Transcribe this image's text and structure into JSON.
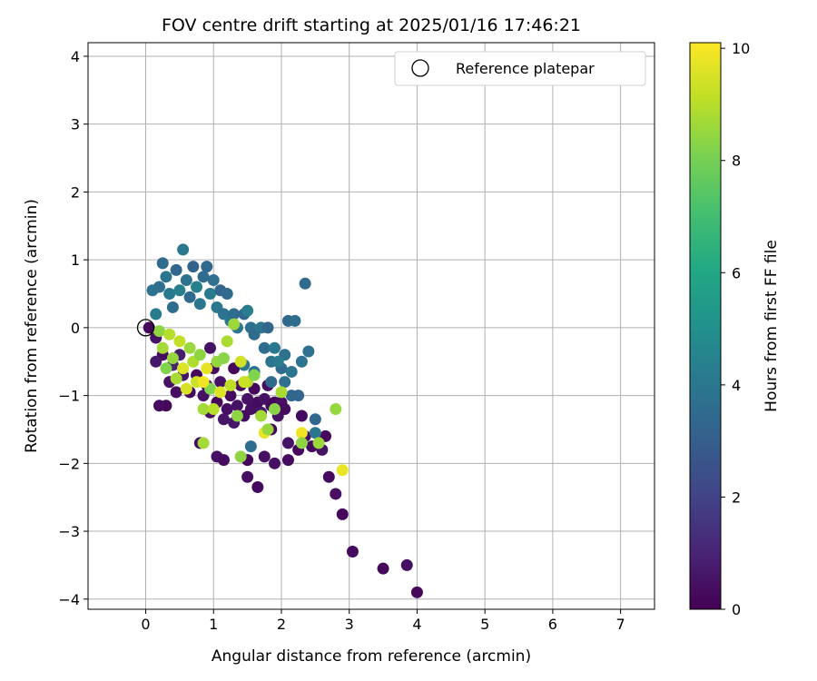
{
  "chart_data": {
    "type": "scatter",
    "title": "FOV centre drift starting at 2025/01/16 17:46:21",
    "xlabel": "Angular distance from reference (arcmin)",
    "ylabel": "Rotation from reference (arcmin)",
    "xlim": [
      -0.85,
      7.5
    ],
    "ylim": [
      -4.15,
      4.2
    ],
    "xticks": [
      0,
      1,
      2,
      3,
      4,
      5,
      6,
      7
    ],
    "yticks": [
      -4,
      -3,
      -2,
      -1,
      0,
      1,
      2,
      3,
      4
    ],
    "grid": true,
    "legend": {
      "placement": "top-right",
      "entries": [
        "Reference platepar"
      ]
    },
    "reference_point": {
      "x": 0,
      "y": 0,
      "label": "Reference platepar"
    },
    "colorbar": {
      "label": "Hours from first FF file",
      "range": [
        0,
        10.1
      ],
      "ticks": [
        0,
        2,
        4,
        6,
        8,
        10
      ],
      "colormap": "viridis"
    },
    "points": [
      [
        0.05,
        0.0,
        0.2
      ],
      [
        0.15,
        -0.15,
        0.5
      ],
      [
        0.25,
        -0.4,
        0.3
      ],
      [
        0.3,
        -1.15,
        0.2
      ],
      [
        0.2,
        -1.15,
        0.3
      ],
      [
        0.35,
        -0.8,
        0.5
      ],
      [
        0.45,
        -0.95,
        0.4
      ],
      [
        0.55,
        -0.7,
        0.6
      ],
      [
        0.65,
        -0.95,
        0.3
      ],
      [
        0.75,
        -0.7,
        0.2
      ],
      [
        0.85,
        -1.0,
        0.5
      ],
      [
        0.9,
        -0.85,
        0.4
      ],
      [
        1.0,
        -0.6,
        0.3
      ],
      [
        1.05,
        -1.1,
        0.2
      ],
      [
        1.1,
        -0.8,
        0.5
      ],
      [
        1.15,
        -1.35,
        0.6
      ],
      [
        1.2,
        -1.2,
        0.4
      ],
      [
        1.25,
        -1.0,
        0.3
      ],
      [
        1.3,
        -0.6,
        0.2
      ],
      [
        1.35,
        -1.15,
        0.5
      ],
      [
        1.4,
        -0.85,
        0.4
      ],
      [
        1.45,
        -1.3,
        0.3
      ],
      [
        1.5,
        -1.05,
        0.5
      ],
      [
        1.55,
        -1.2,
        0.4
      ],
      [
        1.6,
        -0.9,
        0.2
      ],
      [
        1.65,
        -1.1,
        0.3
      ],
      [
        1.7,
        -1.25,
        0.6
      ],
      [
        1.75,
        -1.05,
        0.5
      ],
      [
        1.8,
        -0.85,
        0.4
      ],
      [
        1.85,
        -1.15,
        0.3
      ],
      [
        1.9,
        -1.1,
        0.2
      ],
      [
        1.95,
        -1.3,
        0.5
      ],
      [
        2.0,
        -1.1,
        0.4
      ],
      [
        2.05,
        -1.2,
        0.3
      ],
      [
        0.8,
        -1.7,
        0.4
      ],
      [
        1.05,
        -1.9,
        0.5
      ],
      [
        1.15,
        -1.95,
        0.3
      ],
      [
        1.5,
        -1.95,
        0.2
      ],
      [
        1.5,
        -2.2,
        0.4
      ],
      [
        1.65,
        -2.35,
        0.3
      ],
      [
        1.75,
        -1.9,
        0.5
      ],
      [
        1.85,
        -1.5,
        0.2
      ],
      [
        1.9,
        -2.0,
        0.4
      ],
      [
        2.1,
        -1.95,
        0.3
      ],
      [
        2.1,
        -1.7,
        0.5
      ],
      [
        2.25,
        -1.8,
        0.2
      ],
      [
        2.35,
        -1.6,
        0.4
      ],
      [
        2.45,
        -1.75,
        0.3
      ],
      [
        2.6,
        -1.8,
        0.5
      ],
      [
        2.65,
        -1.6,
        0.2
      ],
      [
        2.7,
        -2.2,
        0.3
      ],
      [
        2.8,
        -2.45,
        0.4
      ],
      [
        2.9,
        -2.75,
        0.2
      ],
      [
        3.05,
        -3.3,
        0.3
      ],
      [
        3.5,
        -3.55,
        0.2
      ],
      [
        3.85,
        -3.5,
        0.4
      ],
      [
        4.0,
        -3.9,
        0.2
      ],
      [
        2.3,
        -1.3,
        0.3
      ],
      [
        1.3,
        -1.4,
        0.6
      ],
      [
        0.95,
        -1.25,
        0.4
      ],
      [
        0.15,
        -0.5,
        0.7
      ],
      [
        0.5,
        -0.4,
        0.8
      ],
      [
        0.95,
        -0.3,
        0.5
      ],
      [
        0.4,
        -0.55,
        1.0
      ],
      [
        0.1,
        0.55,
        3.8
      ],
      [
        0.15,
        0.2,
        4.2
      ],
      [
        0.2,
        0.6,
        3.7
      ],
      [
        0.25,
        0.95,
        3.5
      ],
      [
        0.3,
        0.75,
        3.9
      ],
      [
        0.35,
        0.5,
        4.1
      ],
      [
        0.4,
        0.3,
        3.6
      ],
      [
        0.45,
        0.85,
        3.3
      ],
      [
        0.5,
        0.55,
        4.3
      ],
      [
        0.55,
        1.15,
        4.0
      ],
      [
        0.6,
        0.7,
        3.8
      ],
      [
        0.65,
        0.45,
        3.5
      ],
      [
        0.7,
        0.9,
        3.2
      ],
      [
        0.75,
        0.6,
        4.4
      ],
      [
        0.8,
        0.35,
        3.9
      ],
      [
        0.85,
        0.75,
        3.6
      ],
      [
        0.9,
        0.9,
        3.4
      ],
      [
        0.95,
        0.5,
        4.2
      ],
      [
        1.0,
        0.7,
        3.7
      ],
      [
        1.05,
        0.3,
        4.0
      ],
      [
        1.1,
        0.55,
        3.3
      ],
      [
        1.15,
        0.2,
        3.8
      ],
      [
        1.2,
        0.5,
        3.5
      ],
      [
        1.25,
        0.1,
        4.1
      ],
      [
        1.3,
        0.2,
        3.6
      ],
      [
        1.35,
        0.0,
        3.9
      ],
      [
        1.45,
        0.2,
        3.4
      ],
      [
        1.5,
        0.25,
        4.3
      ],
      [
        1.55,
        0.0,
        3.7
      ],
      [
        1.6,
        -0.1,
        3.5
      ],
      [
        1.7,
        0.0,
        3.9
      ],
      [
        1.75,
        -0.3,
        3.6
      ],
      [
        1.8,
        0.0,
        3.3
      ],
      [
        1.85,
        -0.5,
        3.8
      ],
      [
        1.9,
        -0.3,
        4.0
      ],
      [
        2.0,
        -0.6,
        3.5
      ],
      [
        2.05,
        -0.4,
        3.7
      ],
      [
        2.1,
        0.1,
        3.4
      ],
      [
        2.15,
        -0.65,
        3.9
      ],
      [
        2.2,
        0.1,
        3.6
      ],
      [
        2.25,
        -1.0,
        3.3
      ],
      [
        2.3,
        -0.5,
        3.8
      ],
      [
        2.35,
        0.65,
        3.5
      ],
      [
        2.4,
        -0.35,
        3.7
      ],
      [
        2.5,
        -1.35,
        3.4
      ],
      [
        2.5,
        -1.55,
        3.9
      ],
      [
        1.55,
        -1.75,
        3.6
      ],
      [
        1.45,
        -0.55,
        4.0
      ],
      [
        1.6,
        -0.65,
        3.8
      ],
      [
        1.95,
        -0.5,
        4.2
      ],
      [
        2.15,
        -1.0,
        3.3
      ],
      [
        2.05,
        -0.8,
        3.7
      ],
      [
        1.85,
        -0.8,
        3.5
      ],
      [
        0.2,
        -0.05,
        8.4
      ],
      [
        0.25,
        -0.3,
        8.7
      ],
      [
        0.3,
        -0.6,
        8.2
      ],
      [
        0.35,
        -0.1,
        9.0
      ],
      [
        0.4,
        -0.45,
        8.5
      ],
      [
        0.45,
        -0.75,
        8.8
      ],
      [
        0.5,
        -0.2,
        9.2
      ],
      [
        0.55,
        -0.6,
        8.3
      ],
      [
        0.6,
        -0.9,
        9.5
      ],
      [
        0.65,
        -0.3,
        8.6
      ],
      [
        0.7,
        -0.5,
        8.9
      ],
      [
        0.75,
        -0.8,
        9.3
      ],
      [
        0.8,
        -0.4,
        8.4
      ],
      [
        0.85,
        -1.2,
        8.7
      ],
      [
        0.9,
        -0.6,
        9.7
      ],
      [
        0.95,
        -0.9,
        8.2
      ],
      [
        1.0,
        -1.2,
        9.0
      ],
      [
        1.05,
        -0.5,
        8.5
      ],
      [
        1.1,
        -0.95,
        9.6
      ],
      [
        1.15,
        -0.45,
        8.3
      ],
      [
        1.2,
        -0.2,
        8.8
      ],
      [
        1.25,
        -0.85,
        9.1
      ],
      [
        1.3,
        0.05,
        8.6
      ],
      [
        1.35,
        -1.3,
        8.4
      ],
      [
        1.4,
        -0.5,
        9.4
      ],
      [
        1.5,
        -0.8,
        8.9
      ],
      [
        1.6,
        -0.7,
        8.2
      ],
      [
        1.7,
        -1.3,
        8.7
      ],
      [
        1.75,
        -1.55,
        9.8
      ],
      [
        1.8,
        -1.5,
        8.5
      ],
      [
        1.9,
        -1.2,
        8.3
      ],
      [
        2.0,
        -0.95,
        8.8
      ],
      [
        2.3,
        -1.55,
        9.9
      ],
      [
        2.3,
        -1.7,
        8.4
      ],
      [
        2.55,
        -1.7,
        8.6
      ],
      [
        2.8,
        -1.2,
        8.5
      ],
      [
        2.9,
        -2.1,
        9.8
      ],
      [
        0.85,
        -1.7,
        8.7
      ],
      [
        1.4,
        -1.9,
        8.4
      ],
      [
        1.45,
        -0.8,
        9.3
      ],
      [
        0.55,
        -0.6,
        9.6
      ],
      [
        0.85,
        -0.8,
        9.9
      ]
    ]
  }
}
